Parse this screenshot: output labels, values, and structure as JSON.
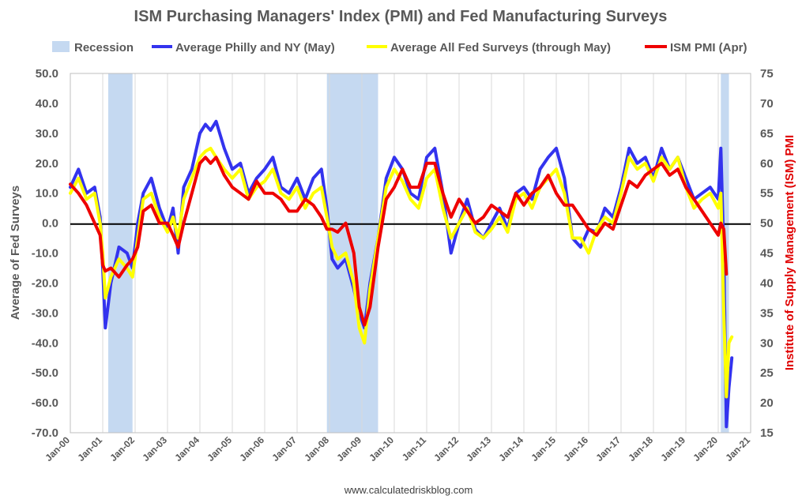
{
  "chart_data": {
    "type": "line",
    "title": "ISM Purchasing Managers' Index (PMI) and Fed Manufacturing Surveys",
    "ylabel_left": "Average of Fed Surveys",
    "ylabel_right": "Institute of Supply Management (ISM) PMI",
    "source": "www.calculatedriskblog.com",
    "left_axis": {
      "min": -70,
      "max": 50,
      "step": 10,
      "tick_labels": [
        "50.0",
        "40.0",
        "30.0",
        "20.0",
        "10.0",
        "0.0",
        "-10.0",
        "-20.0",
        "-30.0",
        "-40.0",
        "-50.0",
        "-60.0",
        "-70.0"
      ]
    },
    "right_axis": {
      "min": 15,
      "max": 75,
      "step": 5,
      "tick_labels": [
        "75",
        "70",
        "65",
        "60",
        "55",
        "50",
        "45",
        "40",
        "35",
        "30",
        "25",
        "20",
        "15"
      ]
    },
    "x_axis": {
      "min_year": 2000,
      "max_year": 2021,
      "tick_labels": [
        "Jan-00",
        "Jan-01",
        "Jan-02",
        "Jan-03",
        "Jan-04",
        "Jan-05",
        "Jan-06",
        "Jan-07",
        "Jan-08",
        "Jan-09",
        "Jan-10",
        "Jan-11",
        "Jan-12",
        "Jan-13",
        "Jan-14",
        "Jan-15",
        "Jan-16",
        "Jan-17",
        "Jan-18",
        "Jan-19",
        "Jan-20",
        "Jan-21"
      ]
    },
    "grid": "vertical",
    "legend_position": "top",
    "legend": [
      {
        "label": "Recession",
        "color": "#c5d9f1",
        "kind": "area"
      },
      {
        "label": "Average Philly and NY (May)",
        "color": "#3333ee",
        "kind": "line"
      },
      {
        "label": "Average All Fed Surveys (through May)",
        "color": "#ffff00",
        "kind": "line"
      },
      {
        "label": "ISM PMI (Apr)",
        "color": "#ee0000",
        "kind": "line"
      }
    ],
    "recessions": [
      {
        "start": 2001.17,
        "end": 2001.92
      },
      {
        "start": 2007.92,
        "end": 2009.5
      },
      {
        "start": 2020.08,
        "end": 2020.33
      }
    ],
    "series": [
      {
        "name": "Average Philly and NY (May)",
        "axis": "left",
        "color": "#3333ee",
        "x": [
          2000.0,
          2000.25,
          2000.5,
          2000.75,
          2000.92,
          2001.0,
          2001.08,
          2001.25,
          2001.5,
          2001.75,
          2001.92,
          2002.08,
          2002.25,
          2002.5,
          2002.75,
          2003.0,
          2003.17,
          2003.33,
          2003.5,
          2003.75,
          2004.0,
          2004.17,
          2004.33,
          2004.5,
          2004.75,
          2005.0,
          2005.25,
          2005.5,
          2005.75,
          2006.0,
          2006.25,
          2006.5,
          2006.75,
          2007.0,
          2007.25,
          2007.5,
          2007.75,
          2007.92,
          2008.08,
          2008.25,
          2008.5,
          2008.75,
          2008.92,
          2009.08,
          2009.25,
          2009.5,
          2009.75,
          2010.0,
          2010.25,
          2010.5,
          2010.75,
          2011.0,
          2011.25,
          2011.5,
          2011.75,
          2012.0,
          2012.25,
          2012.5,
          2012.75,
          2013.0,
          2013.25,
          2013.5,
          2013.75,
          2014.0,
          2014.25,
          2014.5,
          2014.75,
          2015.0,
          2015.25,
          2015.5,
          2015.75,
          2016.0,
          2016.25,
          2016.5,
          2016.75,
          2017.0,
          2017.25,
          2017.5,
          2017.75,
          2018.0,
          2018.25,
          2018.5,
          2018.75,
          2019.0,
          2019.25,
          2019.5,
          2019.75,
          2020.0,
          2020.08,
          2020.17,
          2020.25,
          2020.33,
          2020.42
        ],
        "y": [
          12,
          18,
          10,
          12,
          2,
          -15,
          -35,
          -20,
          -8,
          -10,
          -15,
          0,
          10,
          15,
          5,
          -2,
          5,
          -10,
          12,
          18,
          30,
          33,
          31,
          34,
          25,
          18,
          20,
          10,
          15,
          18,
          22,
          12,
          10,
          15,
          8,
          15,
          18,
          5,
          -12,
          -15,
          -12,
          -22,
          -30,
          -35,
          -20,
          -5,
          15,
          22,
          18,
          10,
          8,
          22,
          25,
          10,
          -10,
          0,
          8,
          -2,
          -5,
          0,
          5,
          -2,
          10,
          12,
          8,
          18,
          22,
          25,
          15,
          -5,
          -8,
          -2,
          -3,
          5,
          2,
          12,
          25,
          20,
          22,
          15,
          25,
          18,
          22,
          15,
          8,
          10,
          12,
          8,
          25,
          -10,
          -68,
          -55,
          -45
        ]
      },
      {
        "name": "Average All Fed Surveys (through May)",
        "axis": "left",
        "color": "#ffff00",
        "x": [
          2000.0,
          2000.25,
          2000.5,
          2000.75,
          2000.92,
          2001.0,
          2001.08,
          2001.25,
          2001.5,
          2001.75,
          2001.92,
          2002.08,
          2002.25,
          2002.5,
          2002.75,
          2003.0,
          2003.17,
          2003.33,
          2003.5,
          2003.75,
          2004.0,
          2004.17,
          2004.33,
          2004.5,
          2004.75,
          2005.0,
          2005.25,
          2005.5,
          2005.75,
          2006.0,
          2006.25,
          2006.5,
          2006.75,
          2007.0,
          2007.25,
          2007.5,
          2007.75,
          2007.92,
          2008.08,
          2008.25,
          2008.5,
          2008.75,
          2008.92,
          2009.08,
          2009.25,
          2009.5,
          2009.75,
          2010.0,
          2010.25,
          2010.5,
          2010.75,
          2011.0,
          2011.25,
          2011.5,
          2011.75,
          2012.0,
          2012.25,
          2012.5,
          2012.75,
          2013.0,
          2013.25,
          2013.5,
          2013.75,
          2014.0,
          2014.25,
          2014.5,
          2014.75,
          2015.0,
          2015.25,
          2015.5,
          2015.75,
          2016.0,
          2016.25,
          2016.5,
          2016.75,
          2017.0,
          2017.25,
          2017.5,
          2017.75,
          2018.0,
          2018.25,
          2018.5,
          2018.75,
          2019.0,
          2019.25,
          2019.5,
          2019.75,
          2020.0,
          2020.08,
          2020.17,
          2020.25,
          2020.33,
          2020.42
        ],
        "y": [
          10,
          15,
          8,
          10,
          0,
          -10,
          -25,
          -18,
          -12,
          -15,
          -18,
          -5,
          8,
          10,
          2,
          -3,
          2,
          -5,
          8,
          15,
          22,
          24,
          25,
          22,
          18,
          15,
          18,
          8,
          12,
          14,
          18,
          10,
          8,
          12,
          5,
          10,
          12,
          2,
          -8,
          -12,
          -10,
          -20,
          -35,
          -40,
          -22,
          -5,
          12,
          18,
          14,
          8,
          5,
          15,
          18,
          5,
          -5,
          0,
          5,
          -3,
          -5,
          -2,
          2,
          -3,
          8,
          10,
          5,
          12,
          15,
          18,
          10,
          -5,
          -5,
          -10,
          -2,
          2,
          0,
          10,
          22,
          18,
          20,
          14,
          22,
          18,
          22,
          12,
          5,
          8,
          10,
          5,
          10,
          -30,
          -58,
          -40,
          -38
        ]
      },
      {
        "name": "ISM PMI (Apr)",
        "axis": "right",
        "color": "#ee0000",
        "x": [
          2000.0,
          2000.25,
          2000.5,
          2000.75,
          2000.92,
          2001.0,
          2001.08,
          2001.25,
          2001.5,
          2001.75,
          2001.92,
          2002.08,
          2002.25,
          2002.5,
          2002.75,
          2003.0,
          2003.17,
          2003.33,
          2003.5,
          2003.75,
          2004.0,
          2004.17,
          2004.33,
          2004.5,
          2004.75,
          2005.0,
          2005.25,
          2005.5,
          2005.75,
          2006.0,
          2006.25,
          2006.5,
          2006.75,
          2007.0,
          2007.25,
          2007.5,
          2007.75,
          2007.92,
          2008.08,
          2008.25,
          2008.5,
          2008.75,
          2008.92,
          2009.08,
          2009.25,
          2009.5,
          2009.75,
          2010.0,
          2010.25,
          2010.5,
          2010.75,
          2011.0,
          2011.25,
          2011.5,
          2011.75,
          2012.0,
          2012.25,
          2012.5,
          2012.75,
          2013.0,
          2013.25,
          2013.5,
          2013.75,
          2014.0,
          2014.25,
          2014.5,
          2014.75,
          2015.0,
          2015.25,
          2015.5,
          2015.75,
          2016.0,
          2016.25,
          2016.5,
          2016.75,
          2017.0,
          2017.25,
          2017.5,
          2017.75,
          2018.0,
          2018.25,
          2018.5,
          2018.75,
          2019.0,
          2019.25,
          2019.5,
          2019.75,
          2020.0,
          2020.08,
          2020.17,
          2020.25
        ],
        "y": [
          56.5,
          55,
          53,
          50,
          48,
          43,
          42,
          42.5,
          41,
          43,
          44,
          46,
          52,
          53,
          50,
          50,
          48,
          46,
          50,
          55,
          60,
          61,
          60,
          61,
          58,
          56,
          55,
          54,
          57,
          55,
          55,
          54,
          52,
          52,
          54,
          53,
          51,
          49,
          49,
          48.5,
          50,
          45,
          36,
          33,
          36,
          46,
          54,
          56,
          59,
          56,
          56,
          60,
          60,
          55,
          51,
          54,
          52,
          50,
          51,
          53,
          52,
          51,
          55,
          53,
          55,
          56,
          58,
          55,
          53,
          53,
          51,
          49,
          48,
          50,
          49,
          53,
          57,
          56,
          58,
          59,
          60,
          58,
          59,
          56,
          54,
          52,
          50,
          48,
          50,
          49,
          41.5
        ]
      }
    ]
  }
}
